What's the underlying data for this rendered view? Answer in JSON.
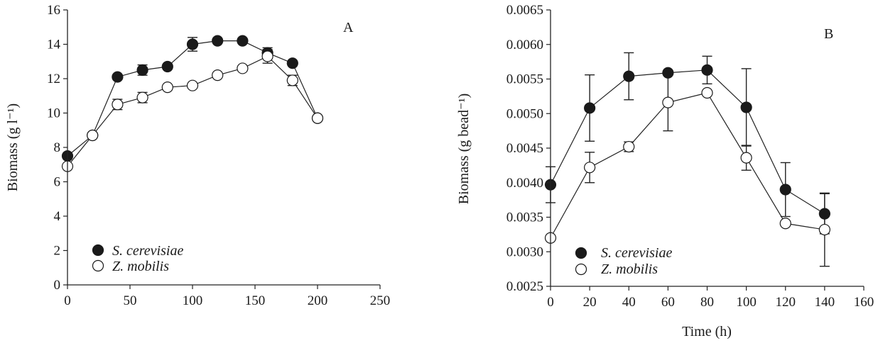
{
  "chart_data": [
    {
      "type": "line",
      "panel_label": "A",
      "xlabel": "",
      "ylabel": "Biomass (g l⁻¹)",
      "xlim": [
        0,
        250
      ],
      "ylim": [
        0,
        16
      ],
      "xticks": [
        "0",
        "50",
        "100",
        "150",
        "200",
        "250"
      ],
      "yticks": [
        "0",
        "2",
        "4",
        "6",
        "8",
        "10",
        "12",
        "14",
        "16"
      ],
      "legend_position": "bottom-left",
      "series": [
        {
          "name": "S. cerevisiae",
          "marker": "filled-circle",
          "x": [
            0,
            20,
            40,
            60,
            80,
            100,
            120,
            140,
            160,
            180,
            200
          ],
          "y": [
            7.5,
            8.7,
            12.1,
            12.5,
            12.7,
            14.0,
            14.2,
            14.2,
            13.5,
            12.9,
            9.7
          ],
          "err": [
            0,
            0,
            0,
            0.3,
            0,
            0.4,
            0,
            0,
            0.3,
            0,
            0
          ]
        },
        {
          "name": "Z. mobilis",
          "marker": "open-circle",
          "x": [
            0,
            20,
            40,
            60,
            80,
            100,
            120,
            140,
            160,
            180,
            200
          ],
          "y": [
            6.9,
            8.7,
            10.5,
            10.9,
            11.5,
            11.6,
            12.2,
            12.6,
            13.3,
            11.9,
            9.7
          ],
          "err": [
            0,
            0,
            0.3,
            0.3,
            0,
            0,
            0,
            0,
            0.4,
            0.3,
            0
          ]
        }
      ]
    },
    {
      "type": "line",
      "panel_label": "B",
      "xlabel": "Time (h)",
      "ylabel": "Biomass (g bead⁻¹)",
      "xlim": [
        0,
        160
      ],
      "ylim": [
        0.0025,
        0.0065
      ],
      "xticks": [
        "0",
        "20",
        "40",
        "60",
        "80",
        "100",
        "120",
        "140",
        "160"
      ],
      "yticks": [
        "0.0025",
        "0.0030",
        "0.0035",
        "0.0040",
        "0.0045",
        "0.0050",
        "0.0055",
        "0.0060",
        "0.0065"
      ],
      "legend_position": "bottom-left",
      "series": [
        {
          "name": "S. cerevisiae",
          "marker": "filled-circle",
          "x": [
            0,
            20,
            40,
            60,
            80,
            100,
            120,
            140
          ],
          "y": [
            0.00397,
            0.00508,
            0.00554,
            0.00559,
            0.00563,
            0.00509,
            0.0039,
            0.00355
          ],
          "err": [
            0.00026,
            0.00048,
            0.00034,
            0,
            0.0002,
            0.00056,
            0.00039,
            0.00029
          ]
        },
        {
          "name": "Z. mobilis",
          "marker": "open-circle",
          "x": [
            0,
            20,
            40,
            60,
            80,
            100,
            120,
            140
          ],
          "y": [
            0.0032,
            0.00422,
            0.00452,
            0.00516,
            0.0053,
            0.00436,
            0.00341,
            0.00332
          ],
          "err": [
            0,
            0.00022,
            7e-05,
            0.00041,
            0,
            0.00018,
            0,
            0.00053
          ]
        }
      ]
    }
  ]
}
